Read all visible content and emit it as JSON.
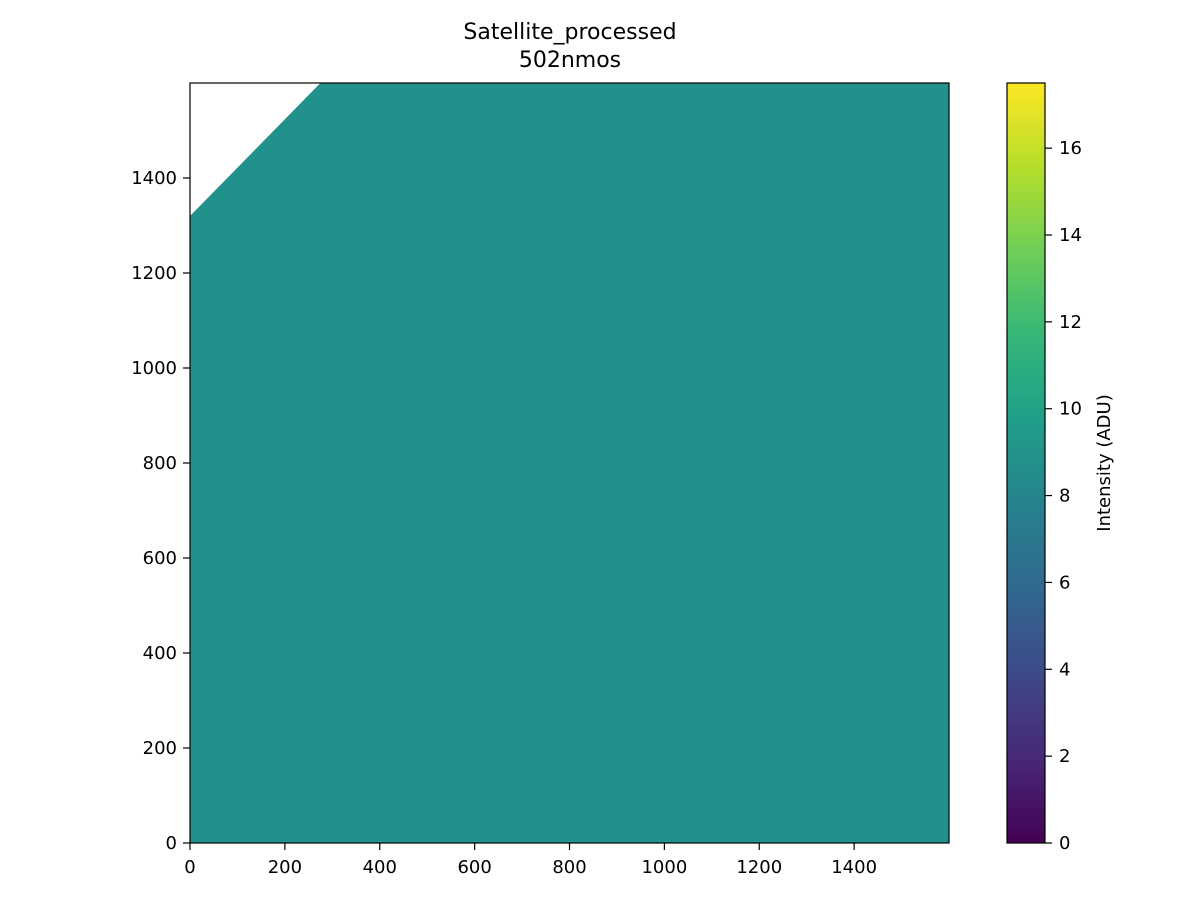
{
  "chart_data": {
    "type": "heatmap",
    "title": "Satellite_processed",
    "subtitle": "502nmos",
    "xlabel": "",
    "ylabel": "",
    "xlim": [
      0,
      1600
    ],
    "ylim": [
      0,
      1600
    ],
    "x_ticks": [
      0,
      200,
      400,
      600,
      800,
      1000,
      1200,
      1400
    ],
    "y_ticks": [
      0,
      200,
      400,
      600,
      800,
      1000,
      1200,
      1400
    ],
    "grid": false,
    "fill_value": 8.75,
    "fill_color": "#21918c",
    "masked_region": {
      "description_values": "no data in upper-left corner above a diagonal edge",
      "edge_from": [
        0,
        1320
      ],
      "edge_to": [
        275,
        1600
      ],
      "color": "#ffffff"
    },
    "colorbar": {
      "label": "Intensity (ADU)",
      "range": [
        0,
        17.5
      ],
      "ticks": [
        0,
        2,
        4,
        6,
        8,
        10,
        12,
        14,
        16
      ],
      "colormap": "viridis",
      "colormap_stops": [
        "#440154",
        "#482878",
        "#3e4989",
        "#31688e",
        "#26828e",
        "#1f9e89",
        "#35b779",
        "#6ece58",
        "#b5de2b",
        "#fde725"
      ]
    }
  }
}
